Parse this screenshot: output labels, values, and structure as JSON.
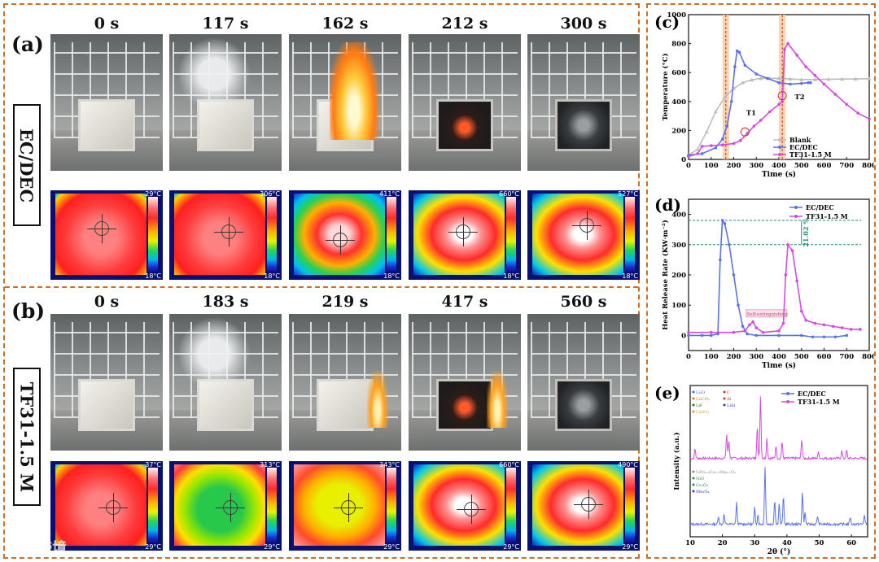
{
  "panels": {
    "a": {
      "letter": "(a)",
      "side_label": "EC/DEC",
      "times": [
        "0 s",
        "117 s",
        "162 s",
        "212 s",
        "300 s"
      ],
      "thermal_max": [
        "29°C",
        "306°C",
        "411°C",
        "660°C",
        "527°C"
      ],
      "thermal_min": [
        "18°C",
        "18°C",
        "18°C",
        "18°C",
        "18°C"
      ]
    },
    "b": {
      "letter": "(b)",
      "side_label": "TF31-1.5 M",
      "times": [
        "0 s",
        "183 s",
        "219 s",
        "417 s",
        "560 s"
      ],
      "thermal_max": [
        "37°C",
        "313°C",
        "343°C",
        "660°C",
        "490°C"
      ],
      "thermal_min": [
        "29°C",
        "29°C",
        "29°C",
        "29°C",
        "29°C"
      ]
    }
  },
  "watermark": "大数跨境",
  "chart_data": [
    {
      "id": "c",
      "letter": "(c)",
      "type": "line",
      "xlabel": "Time (s)",
      "ylabel": "Temperature (°C)",
      "xlim": [
        0,
        800
      ],
      "ylim": [
        0,
        1000
      ],
      "xticks": [
        0,
        100,
        200,
        300,
        400,
        500,
        600,
        700,
        800
      ],
      "yticks": [
        0,
        200,
        400,
        600,
        800,
        1000
      ],
      "annotations": [
        "T1",
        "T2"
      ],
      "vbands": [
        165,
        415
      ],
      "series": [
        {
          "name": "Blank",
          "color": "#bdbdbd",
          "x": [
            0,
            40,
            80,
            120,
            160,
            200,
            240,
            280,
            320,
            360,
            400,
            450,
            500,
            560,
            620,
            680,
            740,
            800
          ],
          "y": [
            30,
            70,
            190,
            330,
            430,
            490,
            530,
            550,
            560,
            560,
            560,
            556,
            552,
            552,
            554,
            555,
            556,
            557
          ]
        },
        {
          "name": "EC/DEC",
          "color": "#5a72e6",
          "x": [
            0,
            60,
            120,
            150,
            170,
            190,
            205,
            215,
            225,
            250,
            300,
            350,
            400,
            450,
            500,
            530,
            540
          ],
          "y": [
            30,
            40,
            80,
            140,
            230,
            400,
            640,
            750,
            740,
            650,
            590,
            560,
            530,
            520,
            525,
            530,
            530
          ]
        },
        {
          "name": "TF31-1.5 M",
          "color": "#d24bde",
          "x": [
            0,
            40,
            60,
            100,
            150,
            200,
            230,
            260,
            290,
            320,
            360,
            400,
            415,
            425,
            440,
            480,
            520,
            560,
            600,
            650,
            700,
            750,
            800
          ],
          "y": [
            20,
            40,
            90,
            95,
            100,
            110,
            130,
            180,
            230,
            270,
            330,
            380,
            400,
            760,
            800,
            720,
            640,
            580,
            520,
            450,
            380,
            320,
            280
          ]
        }
      ]
    },
    {
      "id": "d",
      "letter": "(d)",
      "type": "line",
      "xlabel": "Time (s)",
      "ylabel": "Heat Release Rate (KW·m⁻²)",
      "xlim": [
        0,
        800
      ],
      "ylim": [
        -50,
        450
      ],
      "xticks": [
        0,
        100,
        200,
        300,
        400,
        500,
        600,
        700,
        800
      ],
      "yticks": [
        0,
        100,
        200,
        300,
        400
      ],
      "annotations": [
        "Self-extinguishing",
        "21.02 %"
      ],
      "hlines": [
        380,
        300
      ],
      "series": [
        {
          "name": "EC/DEC",
          "color": "#5a72e6",
          "x": [
            0,
            60,
            100,
            130,
            140,
            150,
            160,
            180,
            200,
            220,
            240,
            260,
            300,
            400,
            500,
            550,
            600,
            650,
            700
          ],
          "y": [
            0,
            0,
            0,
            5,
            250,
            380,
            370,
            300,
            200,
            100,
            30,
            5,
            0,
            0,
            0,
            -5,
            -5,
            -5,
            0
          ]
        },
        {
          "name": "TF31-1.5 M",
          "color": "#d24bde",
          "x": [
            0,
            100,
            200,
            250,
            270,
            285,
            300,
            330,
            400,
            420,
            430,
            440,
            460,
            480,
            500,
            520,
            560,
            600,
            640,
            680,
            720,
            760
          ],
          "y": [
            10,
            10,
            10,
            15,
            35,
            45,
            25,
            10,
            15,
            40,
            200,
            300,
            280,
            180,
            80,
            50,
            40,
            35,
            30,
            25,
            20,
            20
          ]
        }
      ]
    },
    {
      "id": "e",
      "letter": "(e)",
      "type": "line",
      "xlabel": "2θ (°)",
      "ylabel": "Intensity (a.u.)",
      "xlim": [
        10,
        65
      ],
      "xticks": [
        10,
        20,
        30,
        40,
        50,
        60
      ],
      "legend_top": [
        "Li₂O",
        "C",
        "Li₂CO₃",
        "Al",
        "LiF",
        "LiAl",
        "LiAlO₂"
      ],
      "legend_bottom": [
        "LiNi₀.₈Co₀.₁Mn₀.₁O₂",
        "NiO",
        "Co₃O₄",
        "Mn₃O₄"
      ],
      "series": [
        {
          "name": "EC/DEC",
          "color": "#5a72e6"
        },
        {
          "name": "TF31-1.5 M",
          "color": "#d24bde"
        }
      ]
    }
  ]
}
